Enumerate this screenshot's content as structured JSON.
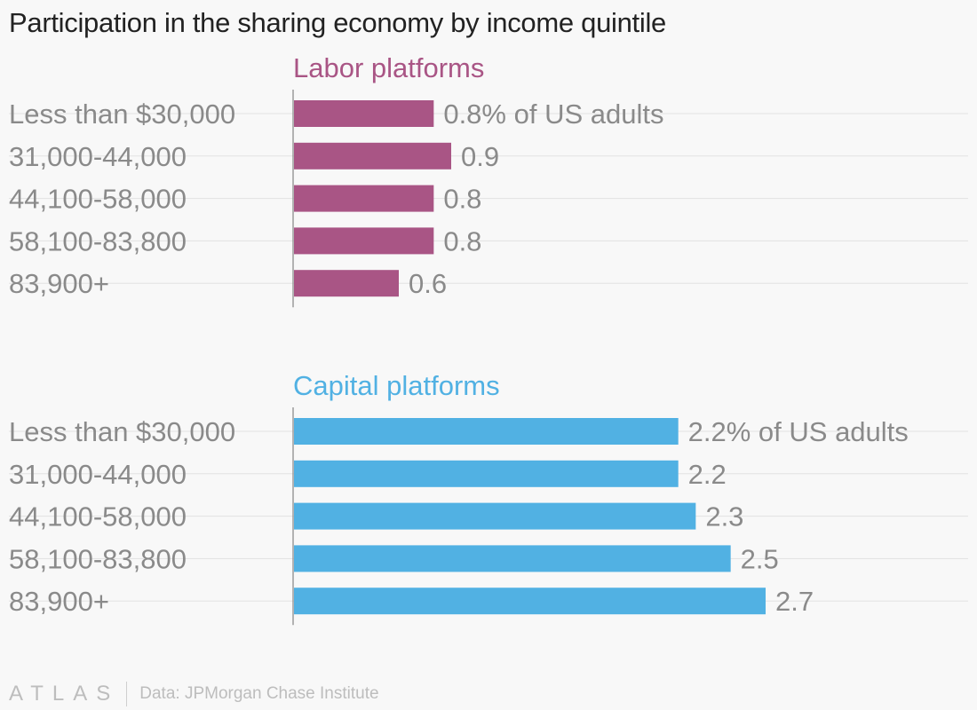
{
  "chart_data": {
    "type": "bar",
    "orientation": "horizontal",
    "title": "Participation in the sharing economy by income quintile",
    "xlim": [
      0,
      2.7
    ],
    "grid": true,
    "categories": [
      "Less than $30,000",
      "31,000-44,000",
      "44,100-58,000",
      "58,100-83,800",
      "83,900+"
    ],
    "panels": [
      {
        "name": "Labor platforms",
        "color": "#a95585",
        "values": [
          0.8,
          0.9,
          0.8,
          0.8,
          0.6
        ],
        "value_labels": [
          "0.8% of US adults",
          "0.9",
          "0.8",
          "0.8",
          "0.6"
        ]
      },
      {
        "name": "Capital platforms",
        "color": "#51b1e3",
        "values": [
          2.2,
          2.2,
          2.3,
          2.5,
          2.7
        ],
        "value_labels": [
          "2.2% of US adults",
          "2.2",
          "2.3",
          "2.5",
          "2.7"
        ]
      }
    ]
  },
  "footer": {
    "logo_text": "ATLAS",
    "source": "Data: JPMorgan Chase Institute"
  }
}
